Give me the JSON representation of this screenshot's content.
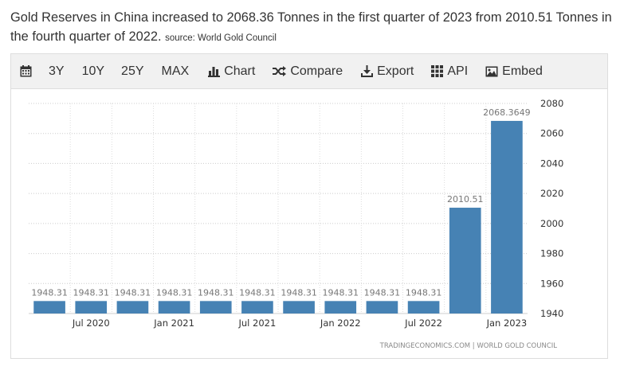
{
  "headline": {
    "text": "Gold Reserves in China increased to 2068.36 Tonnes in the first quarter of 2023 from 2010.51 Tonnes in the fourth quarter of 2022.",
    "source": "source: World Gold Council"
  },
  "toolbar": {
    "items": [
      {
        "label": "",
        "icon": "calendar-icon"
      },
      {
        "label": "3Y"
      },
      {
        "label": "10Y"
      },
      {
        "label": "25Y"
      },
      {
        "label": "MAX"
      },
      {
        "label": "Chart",
        "icon": "bar-chart-icon"
      },
      {
        "label": "Compare",
        "icon": "shuffle-icon"
      },
      {
        "label": "Export",
        "icon": "download-icon"
      },
      {
        "label": "API",
        "icon": "grid-icon"
      },
      {
        "label": "Embed",
        "icon": "image-icon"
      }
    ]
  },
  "chart_data": {
    "type": "bar",
    "categories": [
      "2020-Q2",
      "2020-Q3",
      "2020-Q4",
      "2021-Q1",
      "2021-Q2",
      "2021-Q3",
      "2021-Q4",
      "2022-Q1",
      "2022-Q2",
      "2022-Q3",
      "2022-Q4",
      "2023-Q1"
    ],
    "values": [
      1948.31,
      1948.31,
      1948.31,
      1948.31,
      1948.31,
      1948.31,
      1948.31,
      1948.31,
      1948.31,
      1948.31,
      2010.51,
      2068.3649
    ],
    "value_labels": [
      "1948.31",
      "1948.31",
      "1948.31",
      "1948.31",
      "1948.31",
      "1948.31",
      "1948.31",
      "1948.31",
      "1948.31",
      "1948.31",
      "2010.51",
      "2068.3649"
    ],
    "x_tick_labels": [
      {
        "category": "2020-Q3",
        "label": "Jul 2020"
      },
      {
        "category": "2021-Q1",
        "label": "Jan 2021"
      },
      {
        "category": "2021-Q3",
        "label": "Jul 2021"
      },
      {
        "category": "2022-Q1",
        "label": "Jan 2022"
      },
      {
        "category": "2022-Q3",
        "label": "Jul 2022"
      },
      {
        "category": "2023-Q1",
        "label": "Jan 2023"
      }
    ],
    "y_ticks": [
      1940,
      1960,
      1980,
      2000,
      2020,
      2040,
      2060,
      2080
    ],
    "ylim": [
      1940,
      2080
    ],
    "y_axis_side": "right",
    "grid": true,
    "bar_color": "#4682b4",
    "credit": "TRADINGECONOMICS.COM | WORLD GOLD COUNCIL"
  }
}
